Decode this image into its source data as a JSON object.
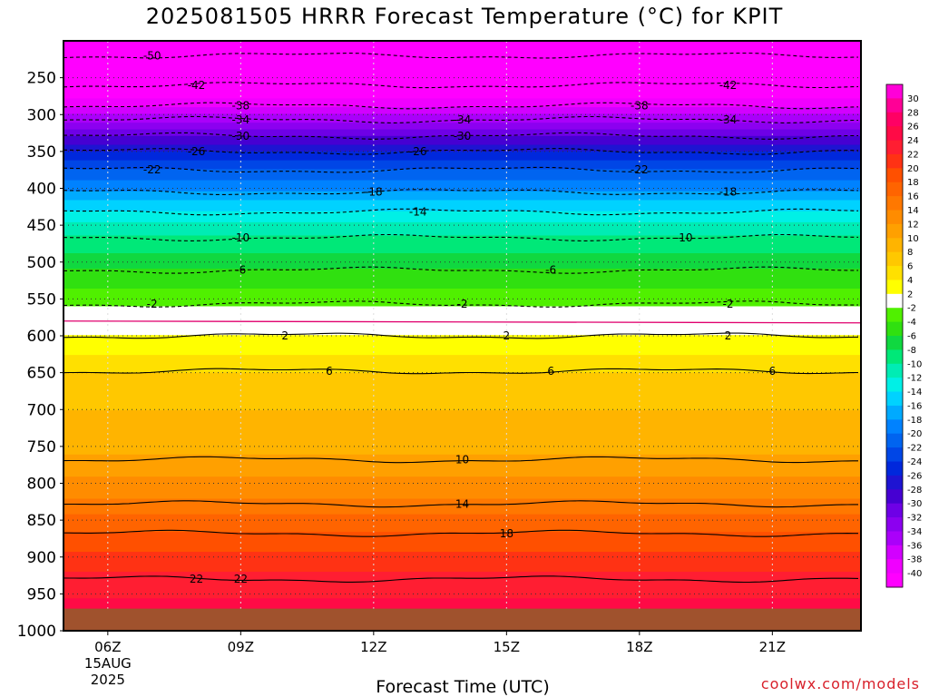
{
  "chart_data": {
    "type": "heatmap",
    "title": "2025081505 HRRR Forecast Temperature (°C) for KPIT",
    "xlabel": "Forecast Time (UTC)",
    "ylabel": "",
    "x_ticks": [
      {
        "value": 6,
        "label": "06Z",
        "sub": [
          "15AUG",
          "2025"
        ]
      },
      {
        "value": 9,
        "label": "09Z",
        "sub": []
      },
      {
        "value": 12,
        "label": "12Z",
        "sub": []
      },
      {
        "value": 15,
        "label": "15Z",
        "sub": []
      },
      {
        "value": 18,
        "label": "18Z",
        "sub": []
      },
      {
        "value": 21,
        "label": "21Z",
        "sub": []
      }
    ],
    "xlim": [
      5,
      23
    ],
    "y_ticks": [
      250,
      300,
      350,
      400,
      450,
      500,
      550,
      600,
      650,
      700,
      750,
      800,
      850,
      900,
      950,
      1000
    ],
    "ylim": [
      1000,
      200
    ],
    "grid": true,
    "colorbar": {
      "labels": [
        "30",
        "28",
        "26",
        "24",
        "22",
        "20",
        "18",
        "16",
        "14",
        "12",
        "10",
        "8",
        "6",
        "4",
        "2",
        "-2",
        "-4",
        "-6",
        "-8",
        "-10",
        "-12",
        "-14",
        "-16",
        "-18",
        "-20",
        "-22",
        "-24",
        "-26",
        "-28",
        "-30",
        "-32",
        "-34",
        "-36",
        "-38",
        "-40"
      ],
      "colors": [
        "#ff00d8",
        "#ff0096",
        "#ff0064",
        "#ff0a46",
        "#ff1e32",
        "#ff3214",
        "#ff5000",
        "#ff6400",
        "#ff7800",
        "#ff8c00",
        "#ffa000",
        "#ffb400",
        "#ffc800",
        "#ffe000",
        "#ffff00",
        "#ffffff",
        "#50f000",
        "#30e010",
        "#10d840",
        "#00e878",
        "#00ecb4",
        "#00f0e6",
        "#00d2ff",
        "#00aaff",
        "#0082ff",
        "#0064f0",
        "#0046e6",
        "#0028dc",
        "#1e14d2",
        "#4600d2",
        "#6e00e6",
        "#8c00f0",
        "#aa00fa",
        "#d200ff",
        "#f000ff",
        "#ff00ff"
      ]
    },
    "bands": [
      {
        "p": 200,
        "t": -52
      },
      {
        "p": 250,
        "t": -44
      },
      {
        "p": 290,
        "t": -38
      },
      {
        "p": 310,
        "t": -34
      },
      {
        "p": 330,
        "t": -30
      },
      {
        "p": 350,
        "t": -26
      },
      {
        "p": 375,
        "t": -22
      },
      {
        "p": 405,
        "t": -18
      },
      {
        "p": 430,
        "t": -14
      },
      {
        "p": 465,
        "t": -10
      },
      {
        "p": 510,
        "t": -6
      },
      {
        "p": 560,
        "t": -2
      },
      {
        "p": 580,
        "t": 0
      },
      {
        "p": 600,
        "t": 2
      },
      {
        "p": 650,
        "t": 6
      },
      {
        "p": 700,
        "t": 8
      },
      {
        "p": 760,
        "t": 10
      },
      {
        "p": 820,
        "t": 14
      },
      {
        "p": 865,
        "t": 18
      },
      {
        "p": 920,
        "t": 22
      },
      {
        "p": 975,
        "t": 25
      }
    ],
    "contours": [
      {
        "value": -50,
        "label": "-50",
        "p": 220,
        "dashed": true,
        "label_x": [
          7
        ]
      },
      {
        "value": -42,
        "label": "-42",
        "p": 260,
        "dashed": true,
        "label_x": [
          8,
          20
        ]
      },
      {
        "value": -38,
        "label": "-38",
        "p": 288,
        "dashed": true,
        "label_x": [
          9,
          18
        ]
      },
      {
        "value": -34,
        "label": "-34",
        "p": 307,
        "dashed": true,
        "label_x": [
          9,
          14,
          20
        ]
      },
      {
        "value": -30,
        "label": "-30",
        "p": 329,
        "dashed": true,
        "label_x": [
          9,
          14
        ]
      },
      {
        "value": -26,
        "label": "-26",
        "p": 350,
        "dashed": true,
        "label_x": [
          8,
          13
        ]
      },
      {
        "value": -22,
        "label": "-22",
        "p": 375,
        "dashed": true,
        "label_x": [
          7,
          18
        ]
      },
      {
        "value": -18,
        "label": "-18",
        "p": 405,
        "dashed": true,
        "label_x": [
          12,
          20
        ]
      },
      {
        "value": -14,
        "label": "-14",
        "p": 432,
        "dashed": true,
        "label_x": [
          13
        ]
      },
      {
        "value": -10,
        "label": "-10",
        "p": 467,
        "dashed": true,
        "label_x": [
          9,
          19
        ]
      },
      {
        "value": -6,
        "label": "-6",
        "p": 511,
        "dashed": true,
        "label_x": [
          9,
          16
        ]
      },
      {
        "value": -2,
        "label": "-2",
        "p": 557,
        "dashed": true,
        "label_x": [
          7,
          14,
          20
        ]
      },
      {
        "value": 2,
        "label": "2",
        "p": 600,
        "dashed": false,
        "label_x": [
          10,
          15,
          20
        ]
      },
      {
        "value": 6,
        "label": "6",
        "p": 648,
        "dashed": false,
        "label_x": [
          11,
          16,
          21
        ]
      },
      {
        "value": 10,
        "label": "10",
        "p": 768,
        "dashed": false,
        "label_x": [
          14
        ]
      },
      {
        "value": 14,
        "label": "14",
        "p": 828,
        "dashed": false,
        "label_x": [
          14
        ]
      },
      {
        "value": 18,
        "label": "18",
        "p": 868,
        "dashed": false,
        "label_x": [
          15
        ]
      },
      {
        "value": 22,
        "label": "22",
        "p": 930,
        "dashed": false,
        "label_x": [
          8,
          9
        ]
      }
    ],
    "ground_p": 970
  },
  "credit": "coolwx.com/models",
  "colors": {
    "ground": "#a0522d",
    "freezing_line": "#e0006e"
  }
}
